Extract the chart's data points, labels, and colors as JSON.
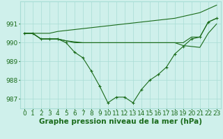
{
  "xlabel": "Graphe pression niveau de la mer (hPa)",
  "x": [
    0,
    1,
    2,
    3,
    4,
    5,
    6,
    7,
    8,
    9,
    10,
    11,
    12,
    13,
    14,
    15,
    16,
    17,
    18,
    19,
    20,
    21,
    22,
    23
  ],
  "y_main": [
    990.5,
    990.5,
    990.2,
    990.2,
    990.2,
    990.0,
    989.5,
    989.2,
    988.5,
    987.7,
    986.8,
    987.1,
    987.1,
    986.8,
    987.5,
    988.0,
    988.3,
    988.7,
    989.4,
    989.8,
    990.2,
    990.3,
    991.1,
    991.3
  ],
  "y_top": [
    990.5,
    990.5,
    990.5,
    990.5,
    990.6,
    990.65,
    990.7,
    990.75,
    990.8,
    990.85,
    990.9,
    990.95,
    991.0,
    991.05,
    991.1,
    991.15,
    991.2,
    991.25,
    991.3,
    991.4,
    991.5,
    991.6,
    991.8,
    992.0
  ],
  "y_flat_upper": [
    990.5,
    990.5,
    990.2,
    990.2,
    990.2,
    990.1,
    990.05,
    990.0,
    990.0,
    990.0,
    990.0,
    990.0,
    990.0,
    990.0,
    990.0,
    990.0,
    990.0,
    990.0,
    990.0,
    990.0,
    990.3,
    990.3,
    991.1,
    991.3
  ],
  "y_flat_lower": [
    990.5,
    990.5,
    990.2,
    990.2,
    990.2,
    990.1,
    990.0,
    990.0,
    990.0,
    990.0,
    990.0,
    990.0,
    990.0,
    990.0,
    990.0,
    990.0,
    990.0,
    990.0,
    990.0,
    989.85,
    989.8,
    989.75,
    990.5,
    991.0
  ],
  "ylim": [
    986.5,
    992.2
  ],
  "yticks": [
    987,
    988,
    989,
    990,
    991
  ],
  "xlim": [
    -0.5,
    23.5
  ],
  "line_color": "#1a6b1a",
  "bg_color": "#cff0eb",
  "grid_color": "#a8ddd5",
  "label_color": "#1a6b1a",
  "xlabel_fontsize": 7.5,
  "tick_fontsize": 6.5
}
